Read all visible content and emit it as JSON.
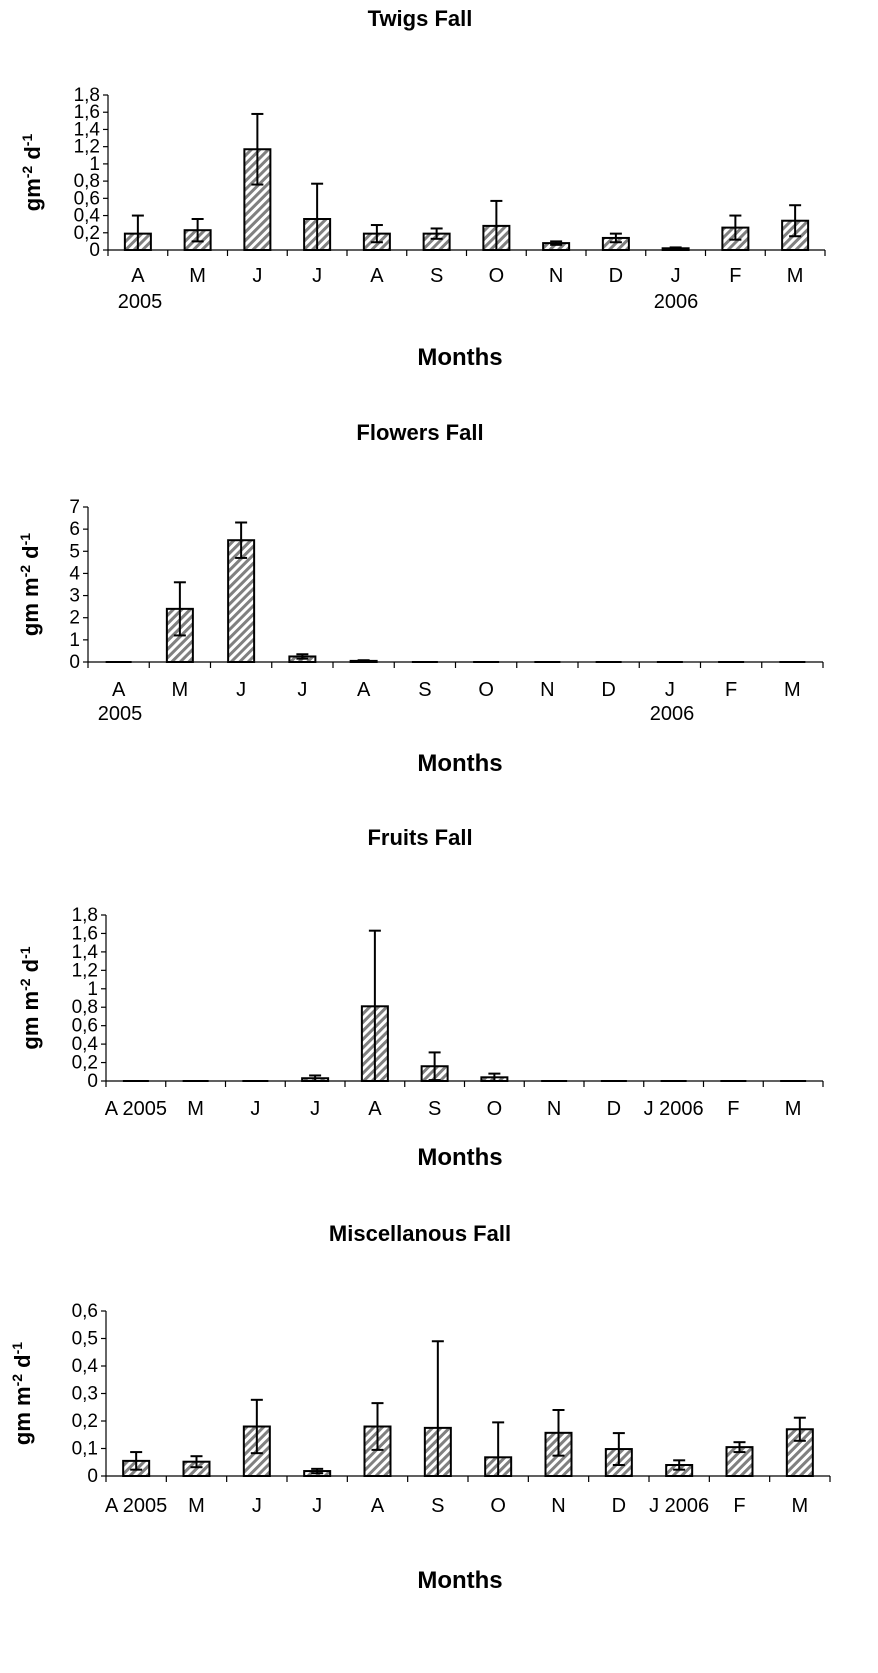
{
  "chart_data": [
    {
      "type": "bar",
      "title": "Twigs Fall",
      "xlabel": "Months",
      "ylabel": "gm",
      "ylabel_sup1": "-2",
      "ylabel_mid": " d",
      "ylabel_sup2": "-1",
      "categories": [
        "A",
        "M",
        "J",
        "J",
        "A",
        "S",
        "O",
        "N",
        "D",
        "J",
        "F",
        "M"
      ],
      "year_labels": [
        "2005",
        "2006"
      ],
      "values": [
        0.19,
        0.23,
        1.17,
        0.36,
        0.19,
        0.19,
        0.28,
        0.08,
        0.14,
        0.02,
        0.26,
        0.34
      ],
      "errors": [
        0.21,
        0.13,
        0.41,
        0.41,
        0.1,
        0.06,
        0.29,
        0.02,
        0.05,
        0.01,
        0.14,
        0.18
      ],
      "ylim": [
        0,
        1.8
      ],
      "yticks": [
        "0",
        "0,2",
        "0,4",
        "0,6",
        "0,8",
        "1",
        "1,2",
        "1,4",
        "1,6",
        "1,8"
      ],
      "grid": false
    },
    {
      "type": "bar",
      "title": "Flowers Fall",
      "xlabel": "Months",
      "ylabel": "gm m",
      "ylabel_sup1": "-2",
      "ylabel_mid": " d",
      "ylabel_sup2": "-1",
      "categories": [
        "A",
        "M",
        "J",
        "J",
        "A",
        "S",
        "O",
        "N",
        "D",
        "J",
        "F",
        "M"
      ],
      "year_labels": [
        "2005",
        "2006"
      ],
      "values": [
        0,
        2.4,
        5.5,
        0.25,
        0.05,
        0,
        0,
        0,
        0,
        0,
        0,
        0
      ],
      "errors": [
        0,
        1.2,
        0.8,
        0.1,
        0.03,
        0,
        0,
        0,
        0,
        0,
        0,
        0
      ],
      "ylim": [
        0,
        7
      ],
      "yticks": [
        "0",
        "1",
        "2",
        "3",
        "4",
        "5",
        "6",
        "7"
      ],
      "grid": false
    },
    {
      "type": "bar",
      "title": "Fruits  Fall",
      "xlabel": "Months",
      "ylabel": "gm m",
      "ylabel_sup1": "-2",
      "ylabel_mid": "  d",
      "ylabel_sup2": "-1",
      "categories": [
        "A 2005",
        "M",
        "J",
        "J",
        "A",
        "S",
        "O",
        "N",
        "D",
        "J 2006",
        "F",
        "M"
      ],
      "values": [
        0,
        0,
        0,
        0.03,
        0.81,
        0.16,
        0.04,
        0,
        0,
        0,
        0,
        0
      ],
      "errors": [
        0,
        0,
        0,
        0.03,
        0.82,
        0.15,
        0.04,
        0,
        0,
        0,
        0,
        0
      ],
      "ylim": [
        0,
        1.8
      ],
      "yticks": [
        "0",
        "0,2",
        "0,4",
        "0,6",
        "0,8",
        "1",
        "1,2",
        "1,4",
        "1,6",
        "1,8"
      ],
      "grid": false
    },
    {
      "type": "bar",
      "title": "Miscellanous Fall",
      "xlabel": "Months",
      "ylabel": "gm m",
      "ylabel_sup1": "-2",
      "ylabel_mid": " d",
      "ylabel_sup2": "-1",
      "categories": [
        "A 2005",
        "M",
        "J",
        "J",
        "A",
        "S",
        "O",
        "N",
        "D",
        "J 2006",
        "F",
        "M"
      ],
      "values": [
        0.055,
        0.052,
        0.18,
        0.018,
        0.18,
        0.175,
        0.068,
        0.157,
        0.098,
        0.04,
        0.105,
        0.17
      ],
      "errors": [
        0.032,
        0.02,
        0.097,
        0.008,
        0.085,
        0.315,
        0.127,
        0.083,
        0.058,
        0.017,
        0.018,
        0.042
      ],
      "ylim": [
        0,
        0.6
      ],
      "yticks": [
        "0",
        "0,1",
        "0,2",
        "0,3",
        "0,4",
        "0,5",
        "0,6"
      ],
      "grid": false
    }
  ]
}
